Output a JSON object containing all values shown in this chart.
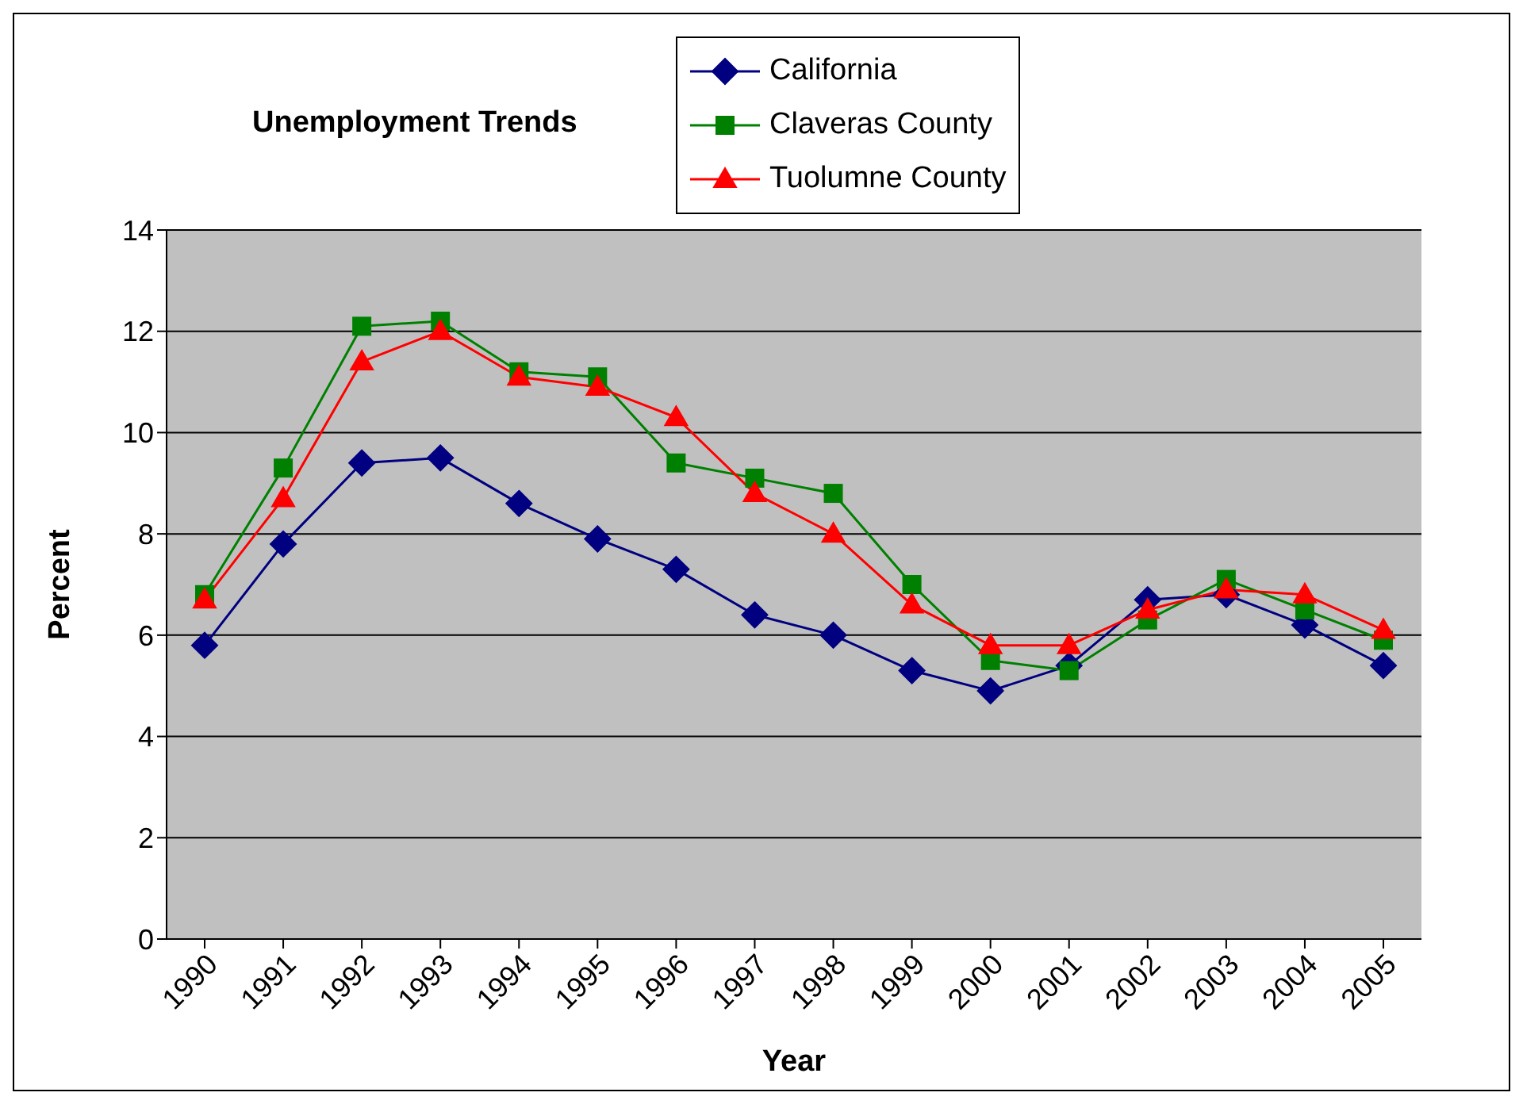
{
  "chart_data": {
    "type": "line",
    "title": "Unemployment Trends",
    "xlabel": "Year",
    "ylabel": "Percent",
    "categories": [
      "1990",
      "1991",
      "1992",
      "1993",
      "1994",
      "1995",
      "1996",
      "1997",
      "1998",
      "1999",
      "2000",
      "2001",
      "2002",
      "2003",
      "2004",
      "2005"
    ],
    "series": [
      {
        "name": "California",
        "color": "#000080",
        "marker": "diamond",
        "values": [
          5.8,
          7.8,
          9.4,
          9.5,
          8.6,
          7.9,
          7.3,
          6.4,
          6.0,
          5.3,
          4.9,
          5.4,
          6.7,
          6.8,
          6.2,
          5.4
        ]
      },
      {
        "name": "Claveras County",
        "color": "#008000",
        "marker": "square",
        "values": [
          6.8,
          9.3,
          12.1,
          12.2,
          11.2,
          11.1,
          9.4,
          9.1,
          8.8,
          7.0,
          5.5,
          5.3,
          6.3,
          7.1,
          6.5,
          5.9
        ]
      },
      {
        "name": "Tuolumne County",
        "color": "#ff0000",
        "marker": "triangle",
        "values": [
          6.7,
          8.7,
          11.4,
          12.0,
          11.1,
          10.9,
          10.3,
          8.8,
          8.0,
          6.6,
          5.8,
          5.8,
          6.5,
          6.9,
          6.8,
          6.1
        ]
      }
    ],
    "ylim": [
      0,
      14
    ],
    "yticks": [
      0,
      2,
      4,
      6,
      8,
      10,
      12,
      14
    ],
    "grid": "y",
    "legend": "top right"
  }
}
